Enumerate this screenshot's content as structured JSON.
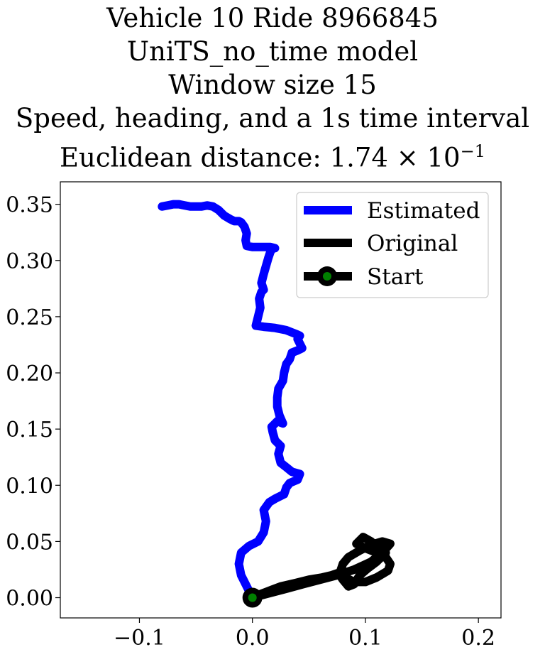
{
  "chart_data": {
    "type": "line",
    "title_lines": [
      "Vehicle 10 Ride 8966845",
      "UniTS_no_time model",
      "Window size 15",
      "Speed, heading, and a 1s time interval"
    ],
    "distance_label": "Euclidean distance: ",
    "distance_mantissa": "1.74",
    "distance_times": " × 10",
    "distance_exponent": "−1",
    "xlim": [
      -0.17,
      0.22
    ],
    "ylim": [
      -0.018,
      0.37
    ],
    "xticks": [
      -0.1,
      0.0,
      0.1,
      0.2
    ],
    "xtick_labels": [
      "−0.1",
      "0.0",
      "0.1",
      "0.2"
    ],
    "yticks": [
      0.0,
      0.05,
      0.1,
      0.15,
      0.2,
      0.25,
      0.3,
      0.35
    ],
    "ytick_labels": [
      "0.00",
      "0.05",
      "0.10",
      "0.15",
      "0.20",
      "0.25",
      "0.30",
      "0.35"
    ],
    "grid": false,
    "legend_position": "top-right",
    "series": [
      {
        "name": "Estimated",
        "color": "#0000ff",
        "points": [
          [
            0.0,
            0.0
          ],
          [
            -0.005,
            0.01
          ],
          [
            -0.01,
            0.02
          ],
          [
            -0.012,
            0.03
          ],
          [
            -0.01,
            0.04
          ],
          [
            -0.003,
            0.046
          ],
          [
            0.005,
            0.05
          ],
          [
            0.01,
            0.058
          ],
          [
            0.012,
            0.068
          ],
          [
            0.01,
            0.078
          ],
          [
            0.015,
            0.085
          ],
          [
            0.02,
            0.088
          ],
          [
            0.028,
            0.092
          ],
          [
            0.03,
            0.098
          ],
          [
            0.033,
            0.102
          ],
          [
            0.04,
            0.105
          ],
          [
            0.042,
            0.11
          ],
          [
            0.035,
            0.112
          ],
          [
            0.03,
            0.116
          ],
          [
            0.025,
            0.12
          ],
          [
            0.023,
            0.128
          ],
          [
            0.025,
            0.135
          ],
          [
            0.02,
            0.14
          ],
          [
            0.018,
            0.147
          ],
          [
            0.017,
            0.152
          ],
          [
            0.022,
            0.157
          ],
          [
            0.027,
            0.155
          ],
          [
            0.024,
            0.162
          ],
          [
            0.022,
            0.17
          ],
          [
            0.022,
            0.178
          ],
          [
            0.023,
            0.186
          ],
          [
            0.027,
            0.193
          ],
          [
            0.028,
            0.2
          ],
          [
            0.03,
            0.208
          ],
          [
            0.033,
            0.212
          ],
          [
            0.035,
            0.218
          ],
          [
            0.04,
            0.22
          ],
          [
            0.044,
            0.222
          ],
          [
            0.042,
            0.226
          ],
          [
            0.04,
            0.23
          ],
          [
            0.042,
            0.233
          ],
          [
            0.04,
            0.234
          ],
          [
            0.03,
            0.238
          ],
          [
            0.02,
            0.24
          ],
          [
            0.01,
            0.241
          ],
          [
            0.003,
            0.242
          ],
          [
            0.005,
            0.25
          ],
          [
            0.007,
            0.258
          ],
          [
            0.006,
            0.266
          ],
          [
            0.008,
            0.272
          ],
          [
            0.01,
            0.274
          ],
          [
            0.008,
            0.28
          ],
          [
            0.01,
            0.288
          ],
          [
            0.012,
            0.295
          ],
          [
            0.014,
            0.302
          ],
          [
            0.016,
            0.308
          ],
          [
            0.018,
            0.311
          ],
          [
            0.02,
            0.311
          ],
          [
            0.016,
            0.312
          ],
          [
            0.008,
            0.312
          ],
          [
            0.0,
            0.312
          ],
          [
            -0.005,
            0.313
          ],
          [
            -0.006,
            0.318
          ],
          [
            -0.005,
            0.324
          ],
          [
            -0.007,
            0.33
          ],
          [
            -0.01,
            0.334
          ],
          [
            -0.012,
            0.335
          ],
          [
            -0.016,
            0.335
          ],
          [
            -0.02,
            0.337
          ],
          [
            -0.025,
            0.34
          ],
          [
            -0.03,
            0.345
          ],
          [
            -0.035,
            0.348
          ],
          [
            -0.04,
            0.349
          ],
          [
            -0.045,
            0.348
          ],
          [
            -0.05,
            0.348
          ],
          [
            -0.055,
            0.348
          ],
          [
            -0.06,
            0.349
          ],
          [
            -0.065,
            0.35
          ],
          [
            -0.07,
            0.35
          ],
          [
            -0.075,
            0.349
          ],
          [
            -0.08,
            0.348
          ]
        ]
      },
      {
        "name": "Original",
        "color": "#000000",
        "points": [
          [
            0.0,
            0.0
          ],
          [
            0.015,
            0.004
          ],
          [
            0.03,
            0.008
          ],
          [
            0.045,
            0.012
          ],
          [
            0.06,
            0.016
          ],
          [
            0.075,
            0.02
          ],
          [
            0.09,
            0.025
          ],
          [
            0.105,
            0.032
          ],
          [
            0.115,
            0.04
          ],
          [
            0.122,
            0.048
          ],
          [
            0.115,
            0.05
          ],
          [
            0.105,
            0.047
          ],
          [
            0.095,
            0.042
          ],
          [
            0.085,
            0.036
          ],
          [
            0.08,
            0.03
          ],
          [
            0.078,
            0.024
          ],
          [
            0.082,
            0.018
          ],
          [
            0.09,
            0.014
          ],
          [
            0.1,
            0.014
          ],
          [
            0.11,
            0.018
          ],
          [
            0.12,
            0.024
          ],
          [
            0.122,
            0.03
          ],
          [
            0.118,
            0.036
          ],
          [
            0.11,
            0.04
          ],
          [
            0.1,
            0.044
          ],
          [
            0.092,
            0.048
          ],
          [
            0.098,
            0.054
          ],
          [
            0.105,
            0.05
          ],
          [
            0.112,
            0.044
          ],
          [
            0.118,
            0.04
          ],
          [
            0.11,
            0.032
          ],
          [
            0.102,
            0.026
          ],
          [
            0.095,
            0.02
          ],
          [
            0.09,
            0.012
          ],
          [
            0.085,
            0.01
          ],
          [
            0.08,
            0.016
          ],
          [
            0.076,
            0.022
          ],
          [
            0.07,
            0.02
          ],
          [
            0.062,
            0.018
          ],
          [
            0.05,
            0.016
          ],
          [
            0.038,
            0.013
          ],
          [
            0.025,
            0.01
          ],
          [
            0.012,
            0.005
          ],
          [
            0.004,
            0.002
          ]
        ]
      },
      {
        "name": "Start",
        "color": "#000000",
        "marker_color": "#008000",
        "points": [
          [
            0.0,
            0.0
          ]
        ]
      }
    ]
  }
}
